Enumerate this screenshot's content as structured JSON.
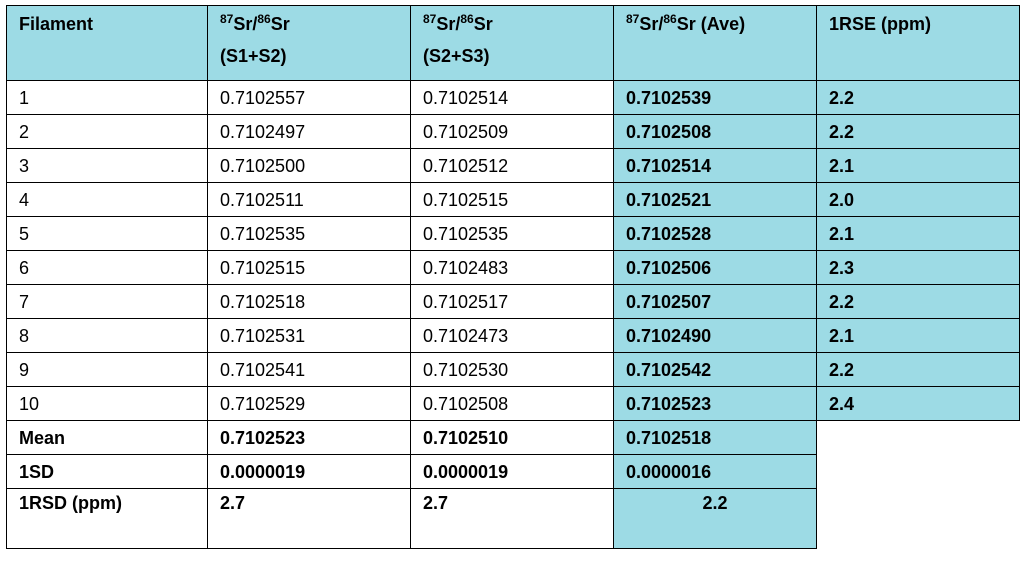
{
  "header": {
    "filament": "Filament",
    "col1": {
      "sup1": "87",
      "el1": "Sr/",
      "sup2": "86",
      "el2": "Sr",
      "sub": "(S1+S2)"
    },
    "col2": {
      "sup1": "87",
      "el1": "Sr/",
      "sup2": "86",
      "el2": "Sr",
      "sub": "(S2+S3)"
    },
    "col3": {
      "sup1": "87",
      "el1": "Sr/",
      "sup2": "86",
      "el2": "Sr (Ave)"
    },
    "col4": "1RSE (ppm)"
  },
  "rows": [
    {
      "id": "1",
      "s12": "0.7102557",
      "s23": "0.7102514",
      "ave": "0.7102539",
      "rse": "2.2"
    },
    {
      "id": "2",
      "s12": "0.7102497",
      "s23": "0.7102509",
      "ave": "0.7102508",
      "rse": "2.2"
    },
    {
      "id": "3",
      "s12": "0.7102500",
      "s23": "0.7102512",
      "ave": "0.7102514",
      "rse": "2.1"
    },
    {
      "id": "4",
      "s12": "0.7102511",
      "s23": "0.7102515",
      "ave": "0.7102521",
      "rse": "2.0"
    },
    {
      "id": "5",
      "s12": "0.7102535",
      "s23": "0.7102535",
      "ave": "0.7102528",
      "rse": "2.1"
    },
    {
      "id": "6",
      "s12": "0.7102515",
      "s23": "0.7102483",
      "ave": "0.7102506",
      "rse": "2.3"
    },
    {
      "id": "7",
      "s12": "0.7102518",
      "s23": "0.7102517",
      "ave": "0.7102507",
      "rse": "2.2"
    },
    {
      "id": "8",
      "s12": "0.7102531",
      "s23": "0.7102473",
      "ave": "0.7102490",
      "rse": "2.1"
    },
    {
      "id": "9",
      "s12": "0.7102541",
      "s23": "0.7102530",
      "ave": "0.7102542",
      "rse": "2.2"
    },
    {
      "id": "10",
      "s12": "0.7102529",
      "s23": "0.7102508",
      "ave": "0.7102523",
      "rse": "2.4"
    }
  ],
  "summary": {
    "mean": {
      "label": "Mean",
      "s12": "0.7102523",
      "s23": "0.7102510",
      "ave": "0.7102518"
    },
    "sd": {
      "label": "1SD",
      "s12": "0.0000019",
      "s23": "0.0000019",
      "ave": "0.0000016"
    },
    "rsd": {
      "label": "1RSD (ppm)",
      "s12": "2.7",
      "s23": "2.7",
      "ave": "2.2"
    }
  },
  "colors": {
    "highlight": "#9ddbe5"
  }
}
